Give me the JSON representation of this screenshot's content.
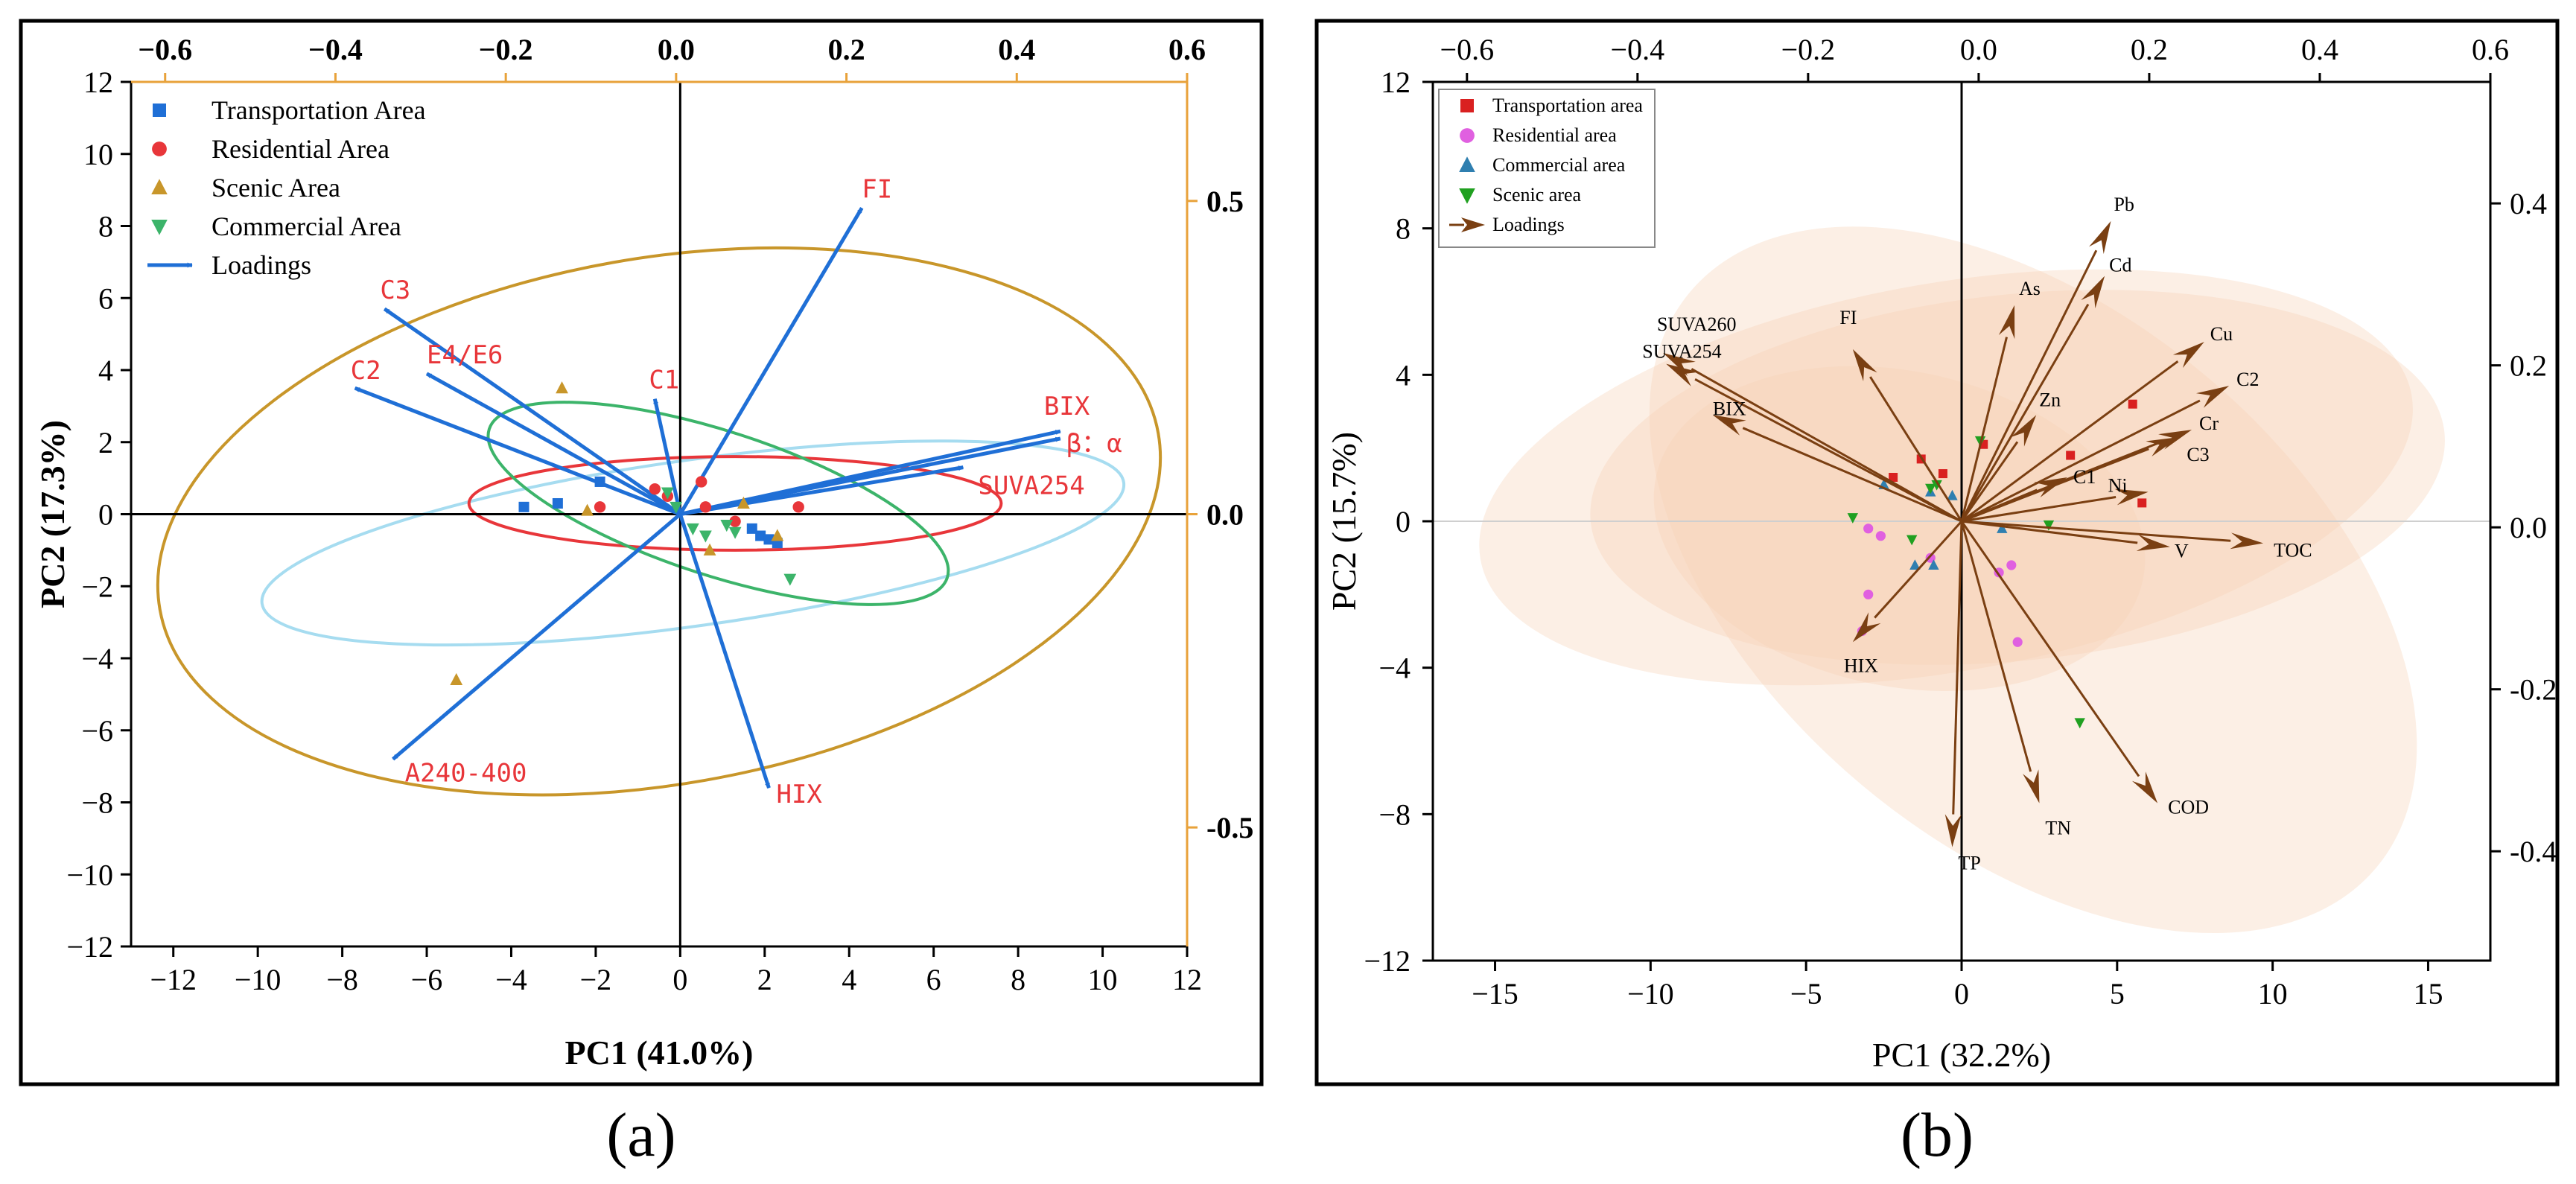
{
  "panels": {
    "a": {
      "caption": "(a)"
    },
    "b": {
      "caption": "(b)"
    }
  },
  "chart_data": [
    {
      "type": "scatter",
      "panel": "a",
      "title": "",
      "xlabel": "PC1 (41.0%)",
      "ylabel": "PC2 (17.3%)",
      "xlim": [
        -13,
        12
      ],
      "ylim": [
        -12,
        12
      ],
      "xticks": [
        -12,
        -10,
        -8,
        -6,
        -4,
        -2,
        0,
        2,
        4,
        6,
        8,
        10,
        12
      ],
      "yticks": [
        -12,
        -10,
        -8,
        -6,
        -4,
        -2,
        0,
        2,
        4,
        6,
        8,
        10,
        12
      ],
      "top_axis": {
        "lim": [
          -0.64,
          0.6
        ],
        "ticks": [
          -0.6,
          -0.4,
          -0.2,
          0.0,
          0.2,
          0.4,
          0.6
        ]
      },
      "right_axis": {
        "lim": [
          -0.69,
          0.69
        ],
        "ticks": [
          0.5,
          0.0,
          -0.5
        ],
        "ticklabels": [
          "0.5",
          "0.0",
          "-0.5"
        ],
        "color": "#e8a23a"
      },
      "grid": false,
      "legend_position": "top-left",
      "series": [
        {
          "name": "Transportation Area",
          "marker": "square",
          "color": "#1f6fd6",
          "points": [
            [
              -3.7,
              0.2
            ],
            [
              -2.9,
              0.3
            ],
            [
              -1.9,
              0.9
            ],
            [
              1.9,
              -0.6
            ],
            [
              2.1,
              -0.7
            ],
            [
              2.3,
              -0.8
            ],
            [
              1.7,
              -0.4
            ]
          ]
        },
        {
          "name": "Residential Area",
          "marker": "circle",
          "color": "#e8363a",
          "points": [
            [
              -1.9,
              0.2
            ],
            [
              -0.6,
              0.7
            ],
            [
              0.5,
              0.9
            ],
            [
              0.6,
              0.2
            ],
            [
              1.3,
              -0.2
            ],
            [
              2.8,
              0.2
            ],
            [
              -0.3,
              0.5
            ]
          ]
        },
        {
          "name": "Scenic Area",
          "marker": "triangle-up",
          "color": "#c8962a",
          "points": [
            [
              -2.8,
              3.5
            ],
            [
              -5.3,
              -4.6
            ],
            [
              -2.2,
              0.1
            ],
            [
              1.5,
              0.3
            ],
            [
              2.3,
              -0.6
            ],
            [
              0.7,
              -1.0
            ]
          ]
        },
        {
          "name": "Commercial Area",
          "marker": "triangle-down",
          "color": "#3cb46a",
          "points": [
            [
              -0.3,
              0.6
            ],
            [
              0.3,
              -0.4
            ],
            [
              0.6,
              -0.6
            ],
            [
              1.1,
              -0.3
            ],
            [
              1.3,
              -0.5
            ],
            [
              2.6,
              -1.8
            ],
            [
              -0.1,
              0.2
            ]
          ]
        }
      ],
      "loadings_legend": "Loadings",
      "loadings": [
        {
          "label": "FI",
          "x": 4.3,
          "y": 8.5
        },
        {
          "label": "C3",
          "x": -7.0,
          "y": 5.7
        },
        {
          "label": "E4/E6",
          "x": -6.0,
          "y": 3.9
        },
        {
          "label": "C2",
          "x": -7.7,
          "y": 3.5
        },
        {
          "label": "C1",
          "x": -0.6,
          "y": 3.2
        },
        {
          "label": "BIX",
          "x": 9.0,
          "y": 2.3
        },
        {
          "label": "β：α",
          "x": 9.0,
          "y": 2.1
        },
        {
          "label": "SUVA254",
          "x": 6.7,
          "y": 1.3
        },
        {
          "label": "HIX",
          "x": 2.1,
          "y": -7.6
        },
        {
          "label": "A240-400",
          "x": -6.8,
          "y": -6.8
        }
      ],
      "loading_label_color": "#e8363a",
      "loading_color": "#1f6fd6",
      "ellipses": [
        {
          "series": "Transportation Area",
          "color": "#a6dcf0",
          "center": [
            0.3,
            -0.8
          ],
          "semi_axes": [
            10.3,
            2.3
          ],
          "angle_deg": 8
        },
        {
          "series": "Residential Area",
          "color": "#e8363a",
          "center": [
            1.3,
            0.3
          ],
          "semi_axes": [
            6.3,
            1.3
          ],
          "angle_deg": 0
        },
        {
          "series": "Scenic Area",
          "color": "#c8962a",
          "center": [
            -0.5,
            -0.2
          ],
          "semi_axes": [
            12.0,
            7.3
          ],
          "angle_deg": 10
        },
        {
          "series": "Commercial Area",
          "color": "#3cb46a",
          "center": [
            0.9,
            0.3
          ],
          "semi_axes": [
            5.7,
            2.0
          ],
          "angle_deg": -18
        }
      ]
    },
    {
      "type": "scatter",
      "panel": "b",
      "title": "",
      "xlabel": "PC1 (32.2%)",
      "ylabel": "PC2 (15.7%)",
      "xlim": [
        -17,
        17
      ],
      "ylim": [
        -12,
        12
      ],
      "xticks": [
        -15,
        -10,
        -5,
        0,
        5,
        10,
        15
      ],
      "yticks": [
        -12,
        -8,
        -4,
        0,
        4,
        8,
        12
      ],
      "top_axis": {
        "lim": [
          -0.64,
          0.6
        ],
        "ticks": [
          -0.6,
          -0.4,
          -0.2,
          0.0,
          0.2,
          0.4,
          0.6
        ]
      },
      "right_axis": {
        "lim": [
          -0.535,
          0.55
        ],
        "ticks": [
          0.4,
          0.2,
          0.0,
          -0.2,
          -0.4
        ],
        "ticklabels": [
          "0.4",
          "0.2",
          "0.0",
          "-0.2",
          "-0.4"
        ],
        "color": "#000000"
      },
      "grid": false,
      "legend_position": "top-left",
      "series": [
        {
          "name": "Transportation area",
          "marker": "square",
          "color": "#d92020",
          "points": [
            [
              -1.3,
              1.7
            ],
            [
              -0.6,
              1.3
            ],
            [
              0.7,
              2.1
            ],
            [
              3.5,
              1.8
            ],
            [
              5.5,
              3.2
            ],
            [
              5.8,
              0.5
            ],
            [
              -2.2,
              1.2
            ]
          ]
        },
        {
          "name": "Residential area",
          "marker": "circle",
          "color": "#e060e0",
          "points": [
            [
              -2.6,
              -0.4
            ],
            [
              -3.0,
              -0.2
            ],
            [
              -3.0,
              -2.0
            ],
            [
              -3.2,
              -3.0
            ],
            [
              1.2,
              -1.4
            ],
            [
              1.6,
              -1.2
            ],
            [
              1.8,
              -3.3
            ],
            [
              -1.0,
              -1.0
            ]
          ]
        },
        {
          "name": "Commercial area",
          "marker": "triangle-up",
          "color": "#2f7fb0",
          "points": [
            [
              -2.5,
              1.0
            ],
            [
              -1.0,
              0.8
            ],
            [
              -0.3,
              0.7
            ],
            [
              1.3,
              -0.2
            ],
            [
              -1.5,
              -1.2
            ],
            [
              -0.9,
              -1.2
            ]
          ]
        },
        {
          "name": "Scenic area",
          "marker": "triangle-down",
          "color": "#20a020",
          "points": [
            [
              -3.5,
              0.1
            ],
            [
              -1.0,
              0.9
            ],
            [
              0.6,
              2.2
            ],
            [
              -1.6,
              -0.5
            ],
            [
              2.8,
              -0.1
            ],
            [
              3.8,
              -5.5
            ],
            [
              -0.8,
              1.0
            ]
          ]
        }
      ],
      "loadings_legend": "Loadings",
      "loadings": [
        {
          "label": "Pb",
          "x": 4.8,
          "y": 8.2
        },
        {
          "label": "Cd",
          "x": 4.6,
          "y": 6.7
        },
        {
          "label": "As",
          "x": 1.7,
          "y": 5.9
        },
        {
          "label": "Cu",
          "x": 7.8,
          "y": 4.9
        },
        {
          "label": "C2",
          "x": 8.6,
          "y": 3.7
        },
        {
          "label": "Cr",
          "x": 7.4,
          "y": 2.5
        },
        {
          "label": "C3",
          "x": 7.0,
          "y": 2.3
        },
        {
          "label": "Zn",
          "x": 2.4,
          "y": 2.9
        },
        {
          "label": "C1",
          "x": 3.4,
          "y": 1.2
        },
        {
          "label": "Ni",
          "x": 6.0,
          "y": 0.8
        },
        {
          "label": "V",
          "x": 6.7,
          "y": -0.7
        },
        {
          "label": "TOC",
          "x": 9.7,
          "y": -0.6
        },
        {
          "label": "FI",
          "x": -3.5,
          "y": 4.7
        },
        {
          "label": "SUVA260",
          "x": -9.6,
          "y": 4.6
        },
        {
          "label": "SUVA254",
          "x": -9.5,
          "y": 4.3
        },
        {
          "label": "BIX",
          "x": -8.0,
          "y": 2.9
        },
        {
          "label": "HIX",
          "x": -3.5,
          "y": -3.3
        },
        {
          "label": "TN",
          "x": 2.5,
          "y": -7.7
        },
        {
          "label": "COD",
          "x": 6.3,
          "y": -7.7
        },
        {
          "label": "TP",
          "x": -0.3,
          "y": -8.9
        }
      ],
      "loading_label_color": "#000000",
      "loading_color": "#7a3f12",
      "ellipses": [
        {
          "color": "#f6d2b4",
          "center": [
            -0.5,
            1.2
          ],
          "semi_axes": [
            15.2,
            5.3
          ],
          "angle_deg": 10
        },
        {
          "color": "#f6d2b4",
          "center": [
            1.8,
            1.2
          ],
          "semi_axes": [
            13.8,
            5.0
          ],
          "angle_deg": 6
        },
        {
          "color": "#f6d2b4",
          "center": [
            2.3,
            -1.6
          ],
          "semi_axes": [
            14.4,
            7.3
          ],
          "angle_deg": -40
        },
        {
          "color": "#f6d2b4",
          "center": [
            -2.0,
            -0.2
          ],
          "semi_axes": [
            8.0,
            4.3
          ],
          "angle_deg": -12
        }
      ]
    }
  ]
}
